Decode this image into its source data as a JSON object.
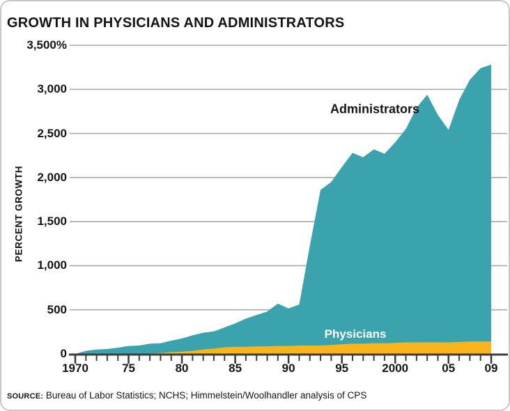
{
  "colors": {
    "teal": "#3BA3AD",
    "yellow": "#FBB41A",
    "grid": "#A9A9A9",
    "axis": "#3D3D3D",
    "text": "#141414",
    "panel_border": "#C8C8C8"
  },
  "source": {
    "label": "SOURCE:",
    "text": " Bureau of Labor Statistics; NCHS; Himmelstein/Woolhandler analysis of CPS"
  },
  "chart_data": {
    "type": "area",
    "title": "GROWTH IN PHYSICIANS AND ADMINISTRATORS",
    "xlabel": "",
    "ylabel": "PERCENT GROWTH",
    "ylim": [
      0,
      3500
    ],
    "xlim": [
      1970,
      2009
    ],
    "grid": "horizontal",
    "legend_position": "inline-annotations",
    "y_ticks": [
      {
        "value": 3500,
        "label": "3,500%"
      },
      {
        "value": 3000,
        "label": "3,000"
      },
      {
        "value": 2500,
        "label": "2,500"
      },
      {
        "value": 2000,
        "label": "2,000"
      },
      {
        "value": 1500,
        "label": "1,500"
      },
      {
        "value": 1000,
        "label": "1,000"
      },
      {
        "value": 500,
        "label": "500"
      },
      {
        "value": 0,
        "label": "0"
      }
    ],
    "x_tick_labels": [
      {
        "year": 1970,
        "label": "1970"
      },
      {
        "year": 1975,
        "label": "75"
      },
      {
        "year": 1980,
        "label": "80"
      },
      {
        "year": 1985,
        "label": "85"
      },
      {
        "year": 1990,
        "label": "90"
      },
      {
        "year": 1995,
        "label": "95"
      },
      {
        "year": 2000,
        "label": "2000"
      },
      {
        "year": 2005,
        "label": "05"
      },
      {
        "year": 2009,
        "label": "09"
      }
    ],
    "x": [
      1970,
      1971,
      1972,
      1973,
      1974,
      1975,
      1976,
      1977,
      1978,
      1979,
      1980,
      1981,
      1982,
      1983,
      1984,
      1985,
      1986,
      1987,
      1988,
      1989,
      1990,
      1991,
      1992,
      1993,
      1994,
      1995,
      1996,
      1997,
      1998,
      1999,
      2000,
      2001,
      2002,
      2003,
      2004,
      2005,
      2006,
      2007,
      2008,
      2009
    ],
    "series": [
      {
        "name": "Administrators",
        "color": "#3BA3AD",
        "values": [
          0,
          35,
          50,
          55,
          70,
          90,
          95,
          115,
          120,
          150,
          175,
          210,
          240,
          255,
          300,
          345,
          400,
          440,
          480,
          570,
          515,
          560,
          1230,
          1860,
          1950,
          2120,
          2280,
          2230,
          2320,
          2270,
          2400,
          2550,
          2790,
          2940,
          2710,
          2540,
          2880,
          3110,
          3240,
          3280
        ]
      },
      {
        "name": "Physicians",
        "color": "#FBB41A",
        "values": [
          0,
          0,
          0,
          0,
          0,
          0,
          0,
          5,
          10,
          20,
          25,
          35,
          50,
          60,
          75,
          80,
          80,
          85,
          85,
          90,
          90,
          95,
          95,
          95,
          100,
          110,
          115,
          115,
          120,
          120,
          125,
          130,
          130,
          130,
          130,
          130,
          135,
          140,
          140,
          140
        ]
      }
    ]
  }
}
